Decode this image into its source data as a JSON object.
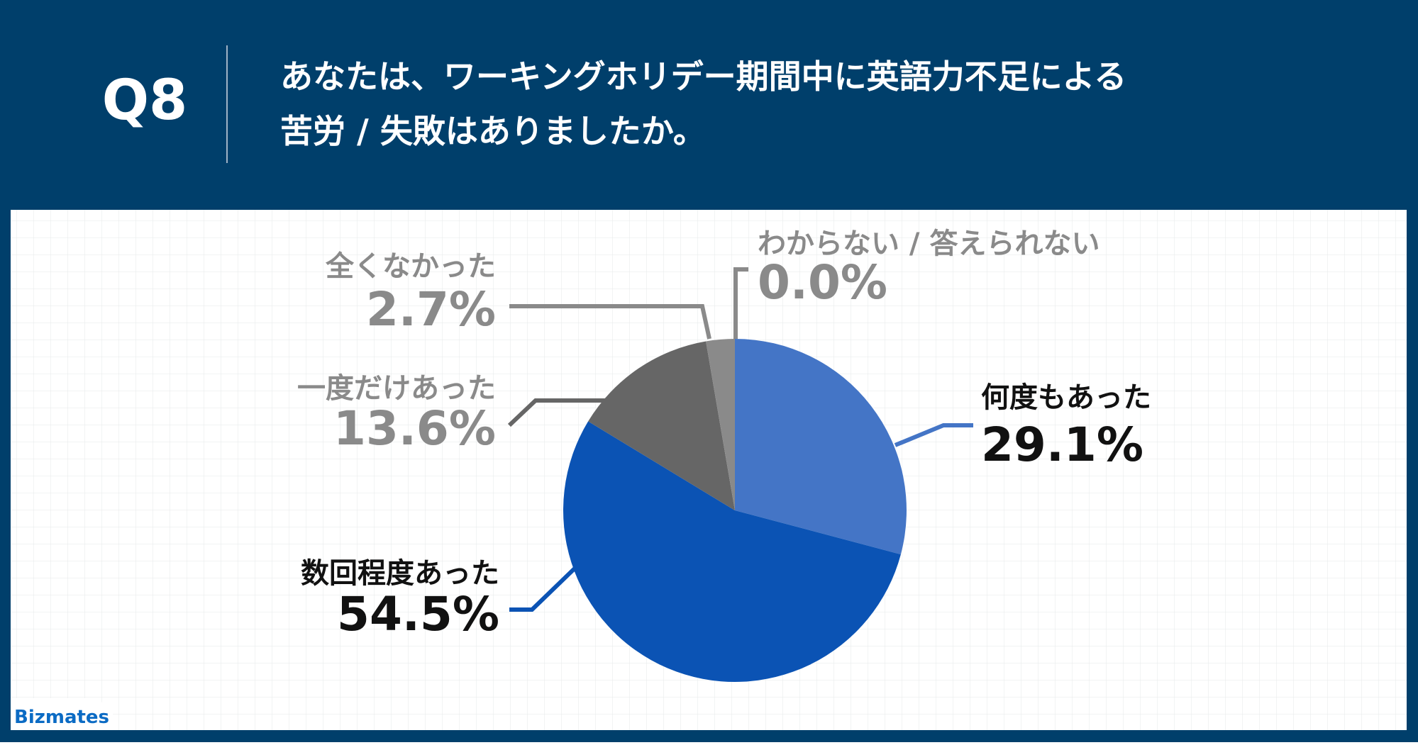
{
  "header_label": "Q8",
  "brand": "Bizmates",
  "chart_data": {
    "type": "pie",
    "title": [
      "あなたは、ワーキングホリデー期間中に英語力不足による",
      "苦労 / 失敗はありましたか。"
    ],
    "categories": [
      "何度もあった",
      "数回程度あった",
      "一度だけあった",
      "全くなかった",
      "わからない / 答えられない"
    ],
    "values": [
      29.1,
      54.5,
      13.6,
      2.7,
      0.0
    ],
    "value_labels": [
      "29.1%",
      "54.5%",
      "13.6%",
      "2.7%",
      "0.0%"
    ],
    "colors": [
      "#4475c6",
      "#0b53b4",
      "#666666",
      "#8a8a8a",
      "#aaaaaa"
    ],
    "label_colors": [
      "#111111",
      "#111111",
      "#8a8a8a",
      "#8a8a8a",
      "#8a8a8a"
    ]
  }
}
